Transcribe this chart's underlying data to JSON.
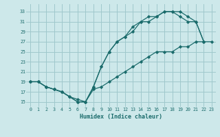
{
  "xlabel": "Humidex (Indice chaleur)",
  "bg_color": "#cde8ea",
  "grid_color": "#9fc8cc",
  "line_color": "#1a6b6b",
  "xlim": [
    -0.5,
    23.5
  ],
  "ylim": [
    14,
    34.5
  ],
  "yticks": [
    15,
    17,
    19,
    21,
    23,
    25,
    27,
    29,
    31,
    33
  ],
  "xticks": [
    0,
    1,
    2,
    3,
    4,
    5,
    6,
    7,
    8,
    9,
    10,
    11,
    12,
    13,
    14,
    15,
    16,
    17,
    18,
    19,
    20,
    21,
    22,
    23
  ],
  "line1_x": [
    0,
    1,
    2,
    3,
    4,
    5,
    6,
    7,
    8,
    9,
    10,
    11,
    12,
    13,
    14,
    15,
    16,
    17,
    18,
    19,
    20,
    21,
    22
  ],
  "line1_y": [
    19,
    19,
    18,
    17.5,
    17,
    16,
    15,
    15,
    18,
    22,
    25,
    27,
    28,
    30,
    31,
    32,
    32,
    33,
    33,
    33,
    32,
    31,
    27
  ],
  "line2_x": [
    0,
    1,
    2,
    3,
    4,
    5,
    6,
    7,
    8,
    9,
    10,
    11,
    12,
    13,
    14,
    15,
    16,
    17,
    18,
    19,
    20,
    21,
    22
  ],
  "line2_y": [
    19,
    19,
    18,
    17.5,
    17,
    16,
    15,
    15,
    18,
    22,
    25,
    27,
    28,
    29,
    31,
    31,
    32,
    33,
    33,
    32,
    31,
    31,
    27
  ],
  "line3_x": [
    0,
    1,
    2,
    3,
    4,
    5,
    6,
    7,
    8,
    9,
    10,
    11,
    12,
    13,
    14,
    15,
    16,
    17,
    18,
    19,
    20,
    21,
    22,
    23
  ],
  "line3_y": [
    19,
    19,
    18,
    17.5,
    17,
    16,
    15.5,
    15,
    17.5,
    18,
    19,
    20,
    21,
    22,
    23,
    24,
    25,
    25,
    25,
    26,
    26,
    27,
    27,
    27
  ]
}
